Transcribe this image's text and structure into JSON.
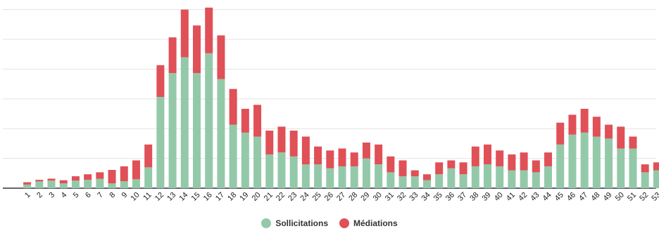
{
  "chart_data": {
    "type": "bar",
    "stacked": true,
    "categories": [
      "1",
      "2",
      "3",
      "4",
      "5",
      "6",
      "7",
      "8",
      "9",
      "10",
      "11",
      "12",
      "13",
      "14",
      "15",
      "16",
      "17",
      "18",
      "19",
      "20",
      "21",
      "22",
      "23",
      "24",
      "25",
      "26",
      "27",
      "28",
      "29",
      "30",
      "31",
      "32",
      "33",
      "34",
      "35",
      "36",
      "37",
      "38",
      "39",
      "40",
      "41",
      "42",
      "43",
      "44",
      "45",
      "46",
      "47",
      "48",
      "49",
      "50",
      "51",
      "52",
      "53"
    ],
    "series": [
      {
        "name": "Sollicitations",
        "color": "#93c9a9",
        "values": [
          1.8,
          3.4,
          3.8,
          2.4,
          3.8,
          4.2,
          4.7,
          2.4,
          3.5,
          4.5,
          10.5,
          46,
          58,
          66,
          58,
          68,
          55,
          32,
          28,
          26,
          17,
          18,
          16,
          12,
          12,
          10,
          11,
          11,
          15,
          12,
          8,
          6,
          6,
          4,
          7,
          10,
          7,
          11,
          12,
          11,
          9,
          9,
          8,
          11,
          22,
          27,
          28,
          26,
          25,
          20,
          20,
          8,
          9
        ]
      },
      {
        "name": "Médiations",
        "color": "#e05057",
        "values": [
          1.2,
          0.8,
          1.0,
          1.6,
          2.2,
          2.8,
          3.3,
          6.8,
          7.5,
          9.5,
          11.5,
          16,
          18,
          24,
          24,
          23,
          22,
          18,
          12,
          16,
          12,
          13,
          13,
          14,
          9,
          9,
          9,
          7,
          8,
          10,
          8,
          8,
          3,
          3,
          6,
          4,
          6,
          10,
          10,
          8,
          8,
          9,
          6,
          7,
          11,
          10,
          12,
          10,
          7,
          11,
          6,
          4,
          4
        ]
      }
    ],
    "ylim": [
      0,
      92
    ],
    "ytick_step": 15,
    "grid": true,
    "legend_position": "bottom-center"
  },
  "legend": {
    "sollicitations": "Sollicitations",
    "mediations": "Médiations",
    "color_sollicitations": "#93c9a9",
    "color_mediations": "#e05057"
  }
}
